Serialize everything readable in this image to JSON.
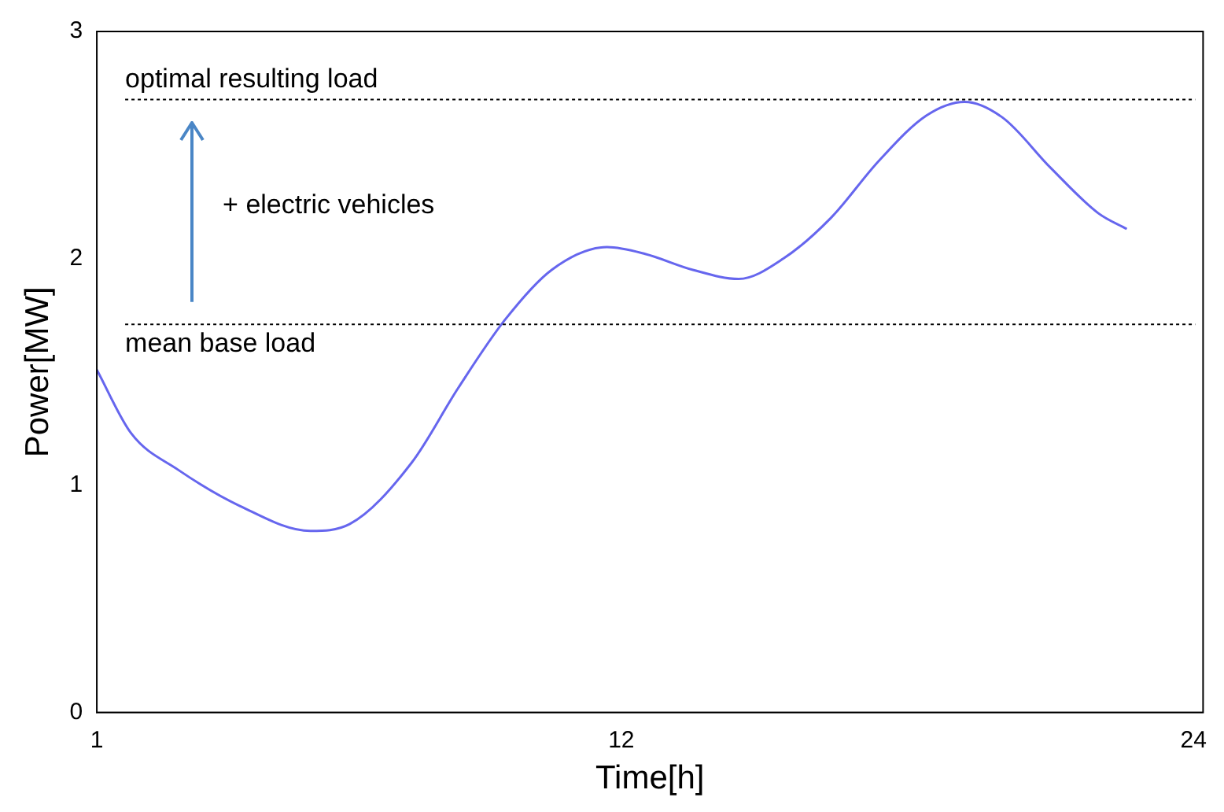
{
  "chart_data": {
    "type": "line",
    "xlabel": "Time[h]",
    "ylabel": "Power[MW]",
    "x": [
      1,
      1.72,
      2.7,
      4.0,
      5.48,
      6.3,
      7.6,
      8.58,
      9.56,
      10.54,
      11.7,
      12.5,
      13.5,
      14.46,
      15.4,
      16.4,
      17.4,
      18.4,
      19.2,
      20.0,
      21.0,
      22.0,
      22.6
    ],
    "series": [
      {
        "color": "#6666ee",
        "values": [
          1.51,
          1.23,
          1.07,
          0.91,
          0.8,
          0.83,
          1.1,
          1.43,
          1.73,
          1.95,
          2.05,
          2.02,
          1.95,
          1.91,
          2.0,
          2.18,
          2.43,
          2.63,
          2.69,
          2.62,
          2.4,
          2.2,
          2.13
        ]
      }
    ],
    "xlim": [
      1,
      24.2
    ],
    "xticks": [
      1,
      12,
      24
    ],
    "ylim": [
      0,
      3
    ],
    "yticks": [
      0,
      1,
      2,
      3
    ],
    "grid": false,
    "legend": false,
    "ref_lines": [
      {
        "axis": "y",
        "value": 2.7,
        "label": "optimal resulting load",
        "color": "#000000",
        "line_style": "dotted"
      },
      {
        "axis": "y",
        "value": 1.71,
        "label": "mean base load",
        "color": "#000000",
        "line_style": "dotted"
      }
    ],
    "annotations": [
      "+ electric vehicles"
    ]
  }
}
